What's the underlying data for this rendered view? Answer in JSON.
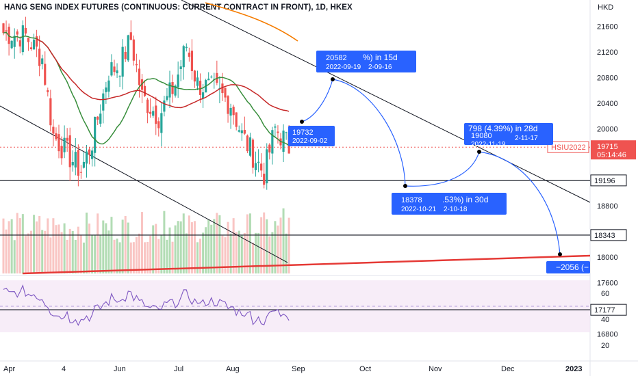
{
  "title": "HANG SENG INDEX FUTURES (CONTINUOUS: CURRENT CONTRACT IN FRONT), 1D, HKEX",
  "colors": {
    "up": "#26a69a",
    "down": "#ef5350",
    "ma_short": "#388e3c",
    "ma_mid": "#c62828",
    "ma_long": "#f57c00",
    "projection": "#2962ff",
    "rsi_band": "#f3e5f5",
    "rsi_line": "#7e57c2",
    "support_line": "#e53935",
    "current_price_bg": "#ef5350"
  },
  "chart_data": {
    "type": "candlestick",
    "currency": "HKD",
    "ylim": [
      16600,
      22000
    ],
    "price_ticks": [
      "21600",
      "21200",
      "20800",
      "20400",
      "20000",
      "18800",
      "18000",
      "17600",
      "16800"
    ],
    "time_ticks": [
      "Apr",
      "4",
      "Jun",
      "Jul",
      "Aug",
      "Sep",
      "Oct",
      "Nov",
      "Dec",
      "2023"
    ],
    "level_lines": [
      {
        "value": 19196,
        "label": "19196"
      },
      {
        "value": 18343,
        "label": "18343"
      },
      {
        "value": 17177,
        "label": "17177"
      }
    ],
    "current_price": {
      "symbol": "HSIU2022",
      "price": "19715",
      "countdown": "05:14:46"
    },
    "projection_points": [
      {
        "value": "19732",
        "date": "2022-09-02",
        "back_text": ""
      },
      {
        "value": "20582",
        "date": "2022-09-19",
        "back_text": "%) in 15d",
        "back_date": "2-09-16"
      },
      {
        "value": "18378",
        "date": "2022-10-21",
        "back_text": ".53%) in 30d",
        "back_date": "2-10-18"
      },
      {
        "value": "19080",
        "date": "2022-11-19",
        "back_text": "(4.39%) in 28d",
        "back_date": "2-11-17"
      },
      {
        "value": "−2056 (−",
        "date": "",
        "back_text": ""
      }
    ],
    "rsi": {
      "ylim": [
        10,
        70
      ],
      "ticks": [
        "60",
        "40",
        "20"
      ],
      "band": [
        30,
        70
      ],
      "midline": 50
    }
  }
}
